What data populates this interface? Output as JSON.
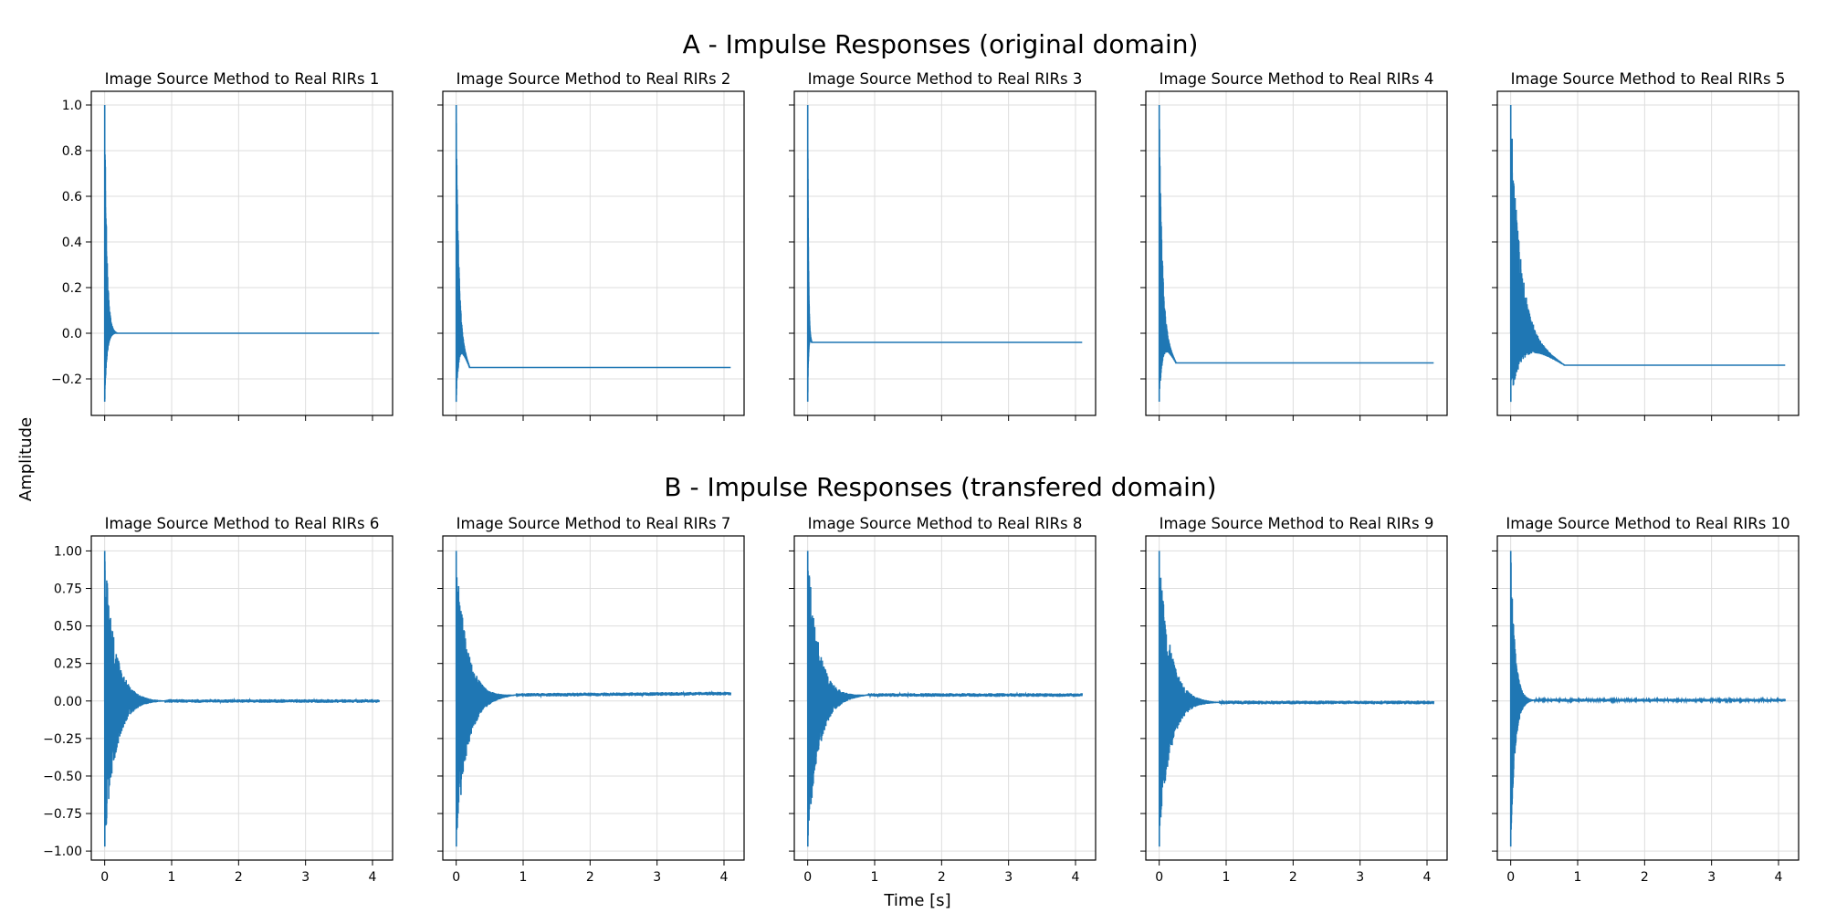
{
  "figure": {
    "row_titles": [
      "A - Impulse Responses (original domain)",
      "B - Impulse Responses (transfered domain)"
    ],
    "xlabel": "Time [s]",
    "ylabel": "Amplitude"
  },
  "colors": {
    "line": "#1f77b4",
    "grid": "#dddddd",
    "frame": "#000000"
  },
  "chart_data": [
    {
      "type": "line",
      "title": "Image Source Method to Real RIRs 1",
      "xlim": [
        -0.2,
        4.3
      ],
      "ylim": [
        -0.36,
        1.06
      ],
      "x_ticks": [
        0,
        1,
        2,
        3,
        4
      ],
      "y_ticks": [
        -0.2,
        0.0,
        0.2,
        0.4,
        0.6,
        0.8,
        1.0
      ],
      "y_tick_labels": [
        "−0.2",
        "0.0",
        "0.2",
        "0.4",
        "0.6",
        "0.8",
        "1.0"
      ],
      "show_x_tick_labels": false,
      "show_y_tick_labels": true,
      "grid": true,
      "series": [
        {
          "peak": 1.0,
          "trough": -0.3,
          "decay_end": 0.18,
          "tail_start": 0.0,
          "tail_end": 0.0,
          "noise": 0.0
        }
      ]
    },
    {
      "type": "line",
      "title": "Image Source Method to Real RIRs 2",
      "xlim": [
        -0.2,
        4.3
      ],
      "ylim": [
        -0.36,
        1.06
      ],
      "x_ticks": [
        0,
        1,
        2,
        3,
        4
      ],
      "y_ticks": [
        -0.2,
        0.0,
        0.2,
        0.4,
        0.6,
        0.8,
        1.0
      ],
      "y_tick_labels": [
        "−0.2",
        "0.0",
        "0.2",
        "0.4",
        "0.6",
        "0.8",
        "1.0"
      ],
      "show_x_tick_labels": false,
      "show_y_tick_labels": false,
      "grid": true,
      "series": [
        {
          "peak": 1.0,
          "trough": -0.3,
          "decay_end": 0.2,
          "tail_start": -0.15,
          "tail_end": -0.15,
          "noise": 0.0
        }
      ]
    },
    {
      "type": "line",
      "title": "Image Source Method to Real RIRs 3",
      "xlim": [
        -0.2,
        4.3
      ],
      "ylim": [
        -0.36,
        1.06
      ],
      "x_ticks": [
        0,
        1,
        2,
        3,
        4
      ],
      "y_ticks": [
        -0.2,
        0.0,
        0.2,
        0.4,
        0.6,
        0.8,
        1.0
      ],
      "y_tick_labels": [
        "−0.2",
        "0.0",
        "0.2",
        "0.4",
        "0.6",
        "0.8",
        "1.0"
      ],
      "show_x_tick_labels": false,
      "show_y_tick_labels": false,
      "grid": true,
      "series": [
        {
          "peak": 1.0,
          "trough": -0.3,
          "decay_end": 0.06,
          "tail_start": -0.04,
          "tail_end": -0.04,
          "noise": 0.0
        }
      ]
    },
    {
      "type": "line",
      "title": "Image Source Method to Real RIRs 4",
      "xlim": [
        -0.2,
        4.3
      ],
      "ylim": [
        -0.36,
        1.06
      ],
      "x_ticks": [
        0,
        1,
        2,
        3,
        4
      ],
      "y_ticks": [
        -0.2,
        0.0,
        0.2,
        0.4,
        0.6,
        0.8,
        1.0
      ],
      "y_tick_labels": [
        "−0.2",
        "0.0",
        "0.2",
        "0.4",
        "0.6",
        "0.8",
        "1.0"
      ],
      "show_x_tick_labels": false,
      "show_y_tick_labels": false,
      "grid": true,
      "series": [
        {
          "peak": 1.0,
          "trough": -0.3,
          "decay_end": 0.25,
          "tail_start": -0.13,
          "tail_end": -0.13,
          "noise": 0.0
        }
      ]
    },
    {
      "type": "line",
      "title": "Image Source Method to Real RIRs 5",
      "xlim": [
        -0.2,
        4.3
      ],
      "ylim": [
        -0.36,
        1.06
      ],
      "x_ticks": [
        0,
        1,
        2,
        3,
        4
      ],
      "y_ticks": [
        -0.2,
        0.0,
        0.2,
        0.4,
        0.6,
        0.8,
        1.0
      ],
      "y_tick_labels": [
        "−0.2",
        "0.0",
        "0.2",
        "0.4",
        "0.6",
        "0.8",
        "1.0"
      ],
      "show_x_tick_labels": false,
      "show_y_tick_labels": false,
      "grid": true,
      "series": [
        {
          "peak": 1.0,
          "trough": -0.3,
          "decay_end": 0.8,
          "tail_start": -0.14,
          "tail_end": -0.14,
          "noise": 0.0
        }
      ]
    },
    {
      "type": "line",
      "title": "Image Source Method to Real RIRs 6",
      "xlim": [
        -0.2,
        4.3
      ],
      "ylim": [
        -1.06,
        1.1
      ],
      "x_ticks": [
        0,
        1,
        2,
        3,
        4
      ],
      "x_tick_labels": [
        "0",
        "1",
        "2",
        "3",
        "4"
      ],
      "y_ticks": [
        -1.0,
        -0.75,
        -0.5,
        -0.25,
        0.0,
        0.25,
        0.5,
        0.75,
        1.0
      ],
      "y_tick_labels": [
        "−1.00",
        "−0.75",
        "−0.50",
        "−0.25",
        "0.00",
        "0.25",
        "0.50",
        "0.75",
        "1.00"
      ],
      "show_x_tick_labels": true,
      "show_y_tick_labels": true,
      "grid": true,
      "series": [
        {
          "peak": 1.0,
          "trough": -0.97,
          "decay_end": 0.9,
          "tail_start": 0.0,
          "tail_end": 0.0,
          "noise": 0.012
        }
      ]
    },
    {
      "type": "line",
      "title": "Image Source Method to Real RIRs 7",
      "xlim": [
        -0.2,
        4.3
      ],
      "ylim": [
        -1.06,
        1.1
      ],
      "x_ticks": [
        0,
        1,
        2,
        3,
        4
      ],
      "x_tick_labels": [
        "0",
        "1",
        "2",
        "3",
        "4"
      ],
      "y_ticks": [
        -1.0,
        -0.75,
        -0.5,
        -0.25,
        0.0,
        0.25,
        0.5,
        0.75,
        1.0
      ],
      "y_tick_labels": [
        "−1.00",
        "−0.75",
        "−0.50",
        "−0.25",
        "0.00",
        "0.25",
        "0.50",
        "0.75",
        "1.00"
      ],
      "show_x_tick_labels": true,
      "show_y_tick_labels": false,
      "grid": true,
      "series": [
        {
          "peak": 1.0,
          "trough": -0.97,
          "decay_end": 0.9,
          "tail_start": 0.04,
          "tail_end": 0.05,
          "noise": 0.012
        }
      ]
    },
    {
      "type": "line",
      "title": "Image Source Method to Real RIRs 8",
      "xlim": [
        -0.2,
        4.3
      ],
      "ylim": [
        -1.06,
        1.1
      ],
      "x_ticks": [
        0,
        1,
        2,
        3,
        4
      ],
      "x_tick_labels": [
        "0",
        "1",
        "2",
        "3",
        "4"
      ],
      "y_ticks": [
        -1.0,
        -0.75,
        -0.5,
        -0.25,
        0.0,
        0.25,
        0.5,
        0.75,
        1.0
      ],
      "y_tick_labels": [
        "−1.00",
        "−0.75",
        "−0.50",
        "−0.25",
        "0.00",
        "0.25",
        "0.50",
        "0.75",
        "1.00"
      ],
      "show_x_tick_labels": true,
      "show_y_tick_labels": false,
      "grid": true,
      "series": [
        {
          "peak": 1.0,
          "trough": -0.97,
          "decay_end": 0.9,
          "tail_start": 0.04,
          "tail_end": 0.04,
          "noise": 0.012
        }
      ]
    },
    {
      "type": "line",
      "title": "Image Source Method to Real RIRs 9",
      "xlim": [
        -0.2,
        4.3
      ],
      "ylim": [
        -1.06,
        1.1
      ],
      "x_ticks": [
        0,
        1,
        2,
        3,
        4
      ],
      "x_tick_labels": [
        "0",
        "1",
        "2",
        "3",
        "4"
      ],
      "y_ticks": [
        -1.0,
        -0.75,
        -0.5,
        -0.25,
        0.0,
        0.25,
        0.5,
        0.75,
        1.0
      ],
      "y_tick_labels": [
        "−1.00",
        "−0.75",
        "−0.50",
        "−0.25",
        "0.00",
        "0.25",
        "0.50",
        "0.75",
        "1.00"
      ],
      "show_x_tick_labels": true,
      "show_y_tick_labels": false,
      "grid": true,
      "series": [
        {
          "peak": 1.0,
          "trough": -0.97,
          "decay_end": 0.9,
          "tail_start": -0.01,
          "tail_end": -0.01,
          "noise": 0.012
        }
      ]
    },
    {
      "type": "line",
      "title": "Image Source Method to Real RIRs 10",
      "xlim": [
        -0.2,
        4.3
      ],
      "ylim": [
        -1.06,
        1.1
      ],
      "x_ticks": [
        0,
        1,
        2,
        3,
        4
      ],
      "x_tick_labels": [
        "0",
        "1",
        "2",
        "3",
        "4"
      ],
      "y_ticks": [
        -1.0,
        -0.75,
        -0.5,
        -0.25,
        0.0,
        0.25,
        0.5,
        0.75,
        1.0
      ],
      "y_tick_labels": [
        "−1.00",
        "−0.75",
        "−0.50",
        "−0.25",
        "0.00",
        "0.25",
        "0.50",
        "0.75",
        "1.00"
      ],
      "show_x_tick_labels": true,
      "show_y_tick_labels": false,
      "grid": true,
      "series": [
        {
          "peak": 1.0,
          "trough": -0.97,
          "decay_end": 0.35,
          "tail_start": 0.005,
          "tail_end": 0.005,
          "noise": 0.01
        }
      ]
    }
  ]
}
